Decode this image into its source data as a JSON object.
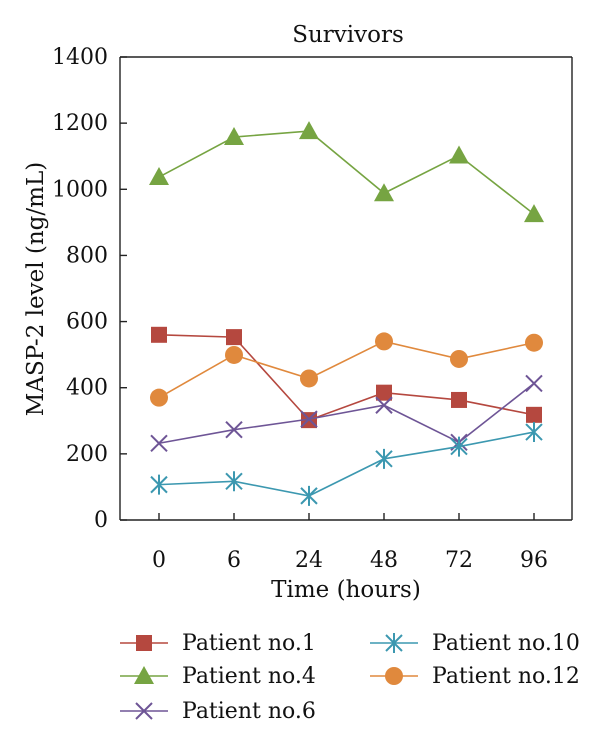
{
  "chart_data": {
    "type": "line",
    "title": "Survivors",
    "xlabel": "Time (hours)",
    "ylabel": "MASP-2 level (ng/mL)",
    "categories": [
      "0",
      "6",
      "24",
      "48",
      "72",
      "96"
    ],
    "ylim": [
      0,
      1400
    ],
    "yticks": [
      "0",
      "200",
      "400",
      "600",
      "800",
      "1000",
      "1200",
      "1400"
    ],
    "grid": false,
    "legend_position": "bottom",
    "series": [
      {
        "name": "Patient no.1",
        "color": "#b5483f",
        "marker": "square",
        "values": [
          560,
          553,
          302,
          385,
          363,
          318
        ]
      },
      {
        "name": "Patient no.4",
        "color": "#76a442",
        "marker": "triangle",
        "values": [
          1037,
          1158,
          1176,
          988,
          1102,
          925
        ]
      },
      {
        "name": "Patient no.6",
        "color": "#6e5596",
        "marker": "x",
        "values": [
          232,
          273,
          305,
          347,
          235,
          413
        ]
      },
      {
        "name": "Patient no.10",
        "color": "#3c98b0",
        "marker": "asterisk",
        "values": [
          107,
          117,
          73,
          185,
          222,
          266
        ]
      },
      {
        "name": "Patient no.12",
        "color": "#e0893d",
        "marker": "circle",
        "values": [
          370,
          499,
          428,
          540,
          487,
          536
        ]
      }
    ]
  }
}
